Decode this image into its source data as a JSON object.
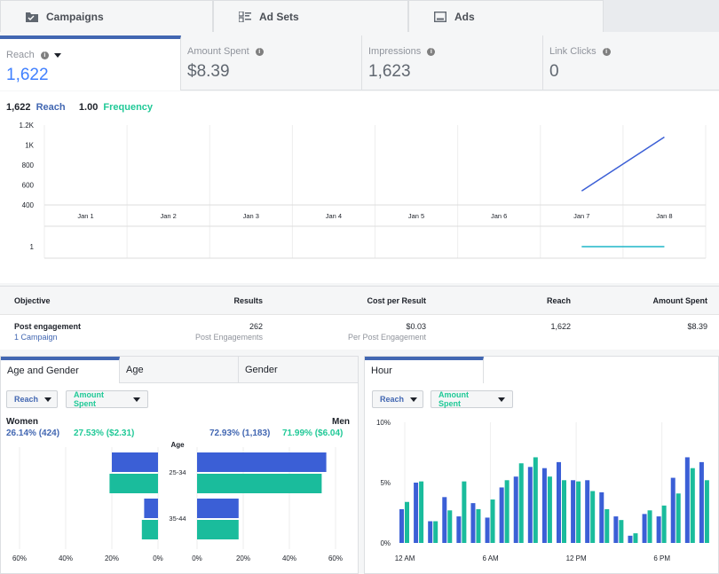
{
  "top_tabs": [
    {
      "label": "Campaigns",
      "icon": "folder-icon"
    },
    {
      "label": "Ad Sets",
      "icon": "grid-icon"
    },
    {
      "label": "Ads",
      "icon": "ad-icon"
    }
  ],
  "metrics": [
    {
      "label": "Reach",
      "value": "1,622",
      "active": true
    },
    {
      "label": "Amount Spent",
      "value": "$8.39"
    },
    {
      "label": "Impressions",
      "value": "1,623"
    },
    {
      "label": "Link Clicks",
      "value": "0"
    }
  ],
  "chart_legend": {
    "reach_value": "1,622",
    "reach_label": "Reach",
    "freq_value": "1.00",
    "freq_label": "Frequency"
  },
  "colors": {
    "accent": "#4267b2",
    "teal": "#20c997",
    "bar_blue": "#3b5fd6",
    "bar_teal": "#1abc9c"
  },
  "chart_data": [
    {
      "type": "line",
      "x": [
        "Jan 1",
        "Jan 2",
        "Jan 3",
        "Jan 4",
        "Jan 5",
        "Jan 6",
        "Jan 7",
        "Jan 8"
      ],
      "yticks": [
        "1.2K",
        "1K",
        "800",
        "600",
        "400"
      ],
      "ylim": [
        400,
        1200
      ],
      "series": [
        {
          "name": "Reach",
          "values": [
            null,
            null,
            null,
            null,
            null,
            null,
            540,
            1080
          ]
        }
      ]
    },
    {
      "type": "line",
      "x": [
        "Jan 1",
        "Jan 2",
        "Jan 3",
        "Jan 4",
        "Jan 5",
        "Jan 6",
        "Jan 7",
        "Jan 8"
      ],
      "yticks": [
        "1"
      ],
      "series": [
        {
          "name": "Frequency",
          "values": [
            null,
            null,
            null,
            null,
            null,
            null,
            1,
            1
          ]
        }
      ]
    },
    {
      "type": "bar",
      "categories": [
        "25-34",
        "35-44"
      ],
      "axis_title": "Age",
      "xticks_left": [
        "60%",
        "40%",
        "20%",
        "0%"
      ],
      "xticks_right": [
        "0%",
        "20%",
        "40%",
        "60%"
      ],
      "women": {
        "reach": [
          20,
          6
        ],
        "amount": [
          21,
          7
        ]
      },
      "men": {
        "reach": [
          56,
          18
        ],
        "amount": [
          54,
          18
        ]
      }
    },
    {
      "type": "bar",
      "yticks": [
        "10%",
        "5%",
        "0%"
      ],
      "ylim": [
        0,
        10
      ],
      "xticks": [
        "12 AM",
        "6 AM",
        "12 PM",
        "6 PM"
      ],
      "reach": [
        2.8,
        5,
        1.8,
        3.8,
        2.2,
        3.3,
        2.1,
        4.6,
        5.5,
        6.3,
        6.2,
        6.7,
        5.2,
        5.2,
        4.2,
        2.2,
        0.6,
        2.4,
        2.2,
        5.4,
        7.1,
        6.7
      ],
      "amount": [
        3.4,
        5.1,
        1.8,
        2.7,
        5.1,
        2.8,
        3.6,
        5.2,
        6.6,
        7.1,
        5.5,
        5.2,
        5.1,
        4.3,
        2.8,
        1.9,
        0.8,
        2.7,
        3.1,
        4.1,
        6.2,
        5.2
      ]
    }
  ],
  "summary": {
    "headers": [
      "Objective",
      "Results",
      "Cost per Result",
      "Reach",
      "Amount Spent"
    ],
    "objective": "Post engagement",
    "objective_link": "1 Campaign",
    "results": "262",
    "results_sub": "Post Engagements",
    "cost": "$0.03",
    "cost_sub": "Per Post Engagement",
    "reach": "1,622",
    "spent": "$8.39"
  },
  "demo_panel": {
    "tabs": [
      "Age and Gender",
      "Age",
      "Gender"
    ],
    "dd_reach": "Reach",
    "dd_amount": "Amount Spent",
    "women_title": "Women",
    "women_reach": "26.14% (424)",
    "women_amount": "27.53% ($2.31)",
    "men_title": "Men",
    "men_reach": "72.93% (1,183)",
    "men_amount": "71.99% ($6.04)"
  },
  "hour_panel": {
    "tab": "Hour",
    "dd_reach": "Reach",
    "dd_amount": "Amount Spent"
  }
}
